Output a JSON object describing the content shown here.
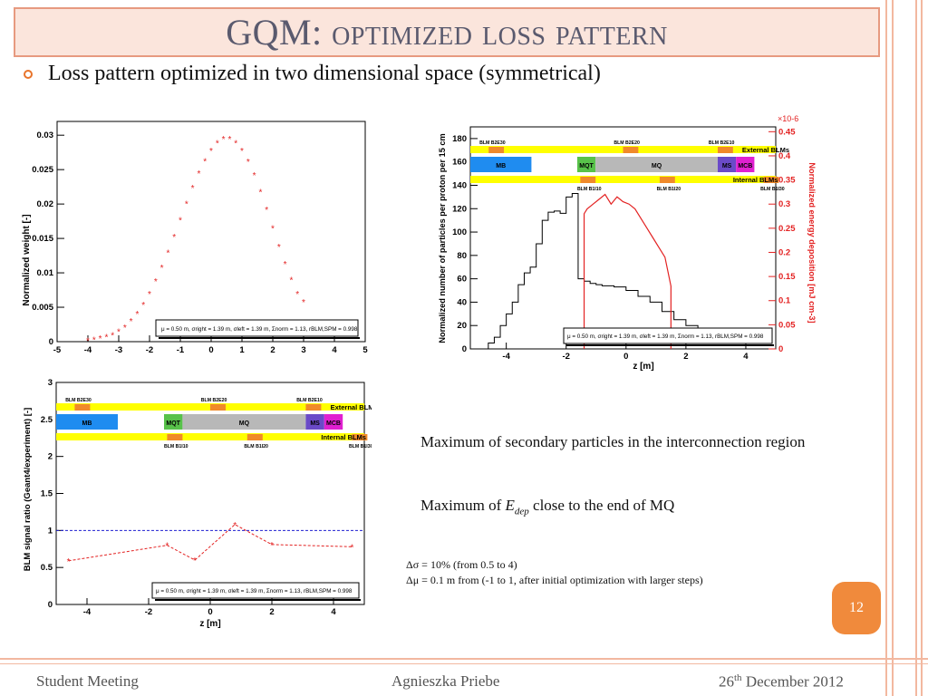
{
  "title": "GQM: optimized loss pattern",
  "bullet": "Loss pattern optimized in two dimensional space (symmetrical)",
  "legend_box": "μ = 0.50 m, σright = 1.39 m, σleft = 1.39 m, Σnorm = 1.13, rBLM,SPM = 0.998",
  "plots": {
    "weight": {
      "ylabel": "Normalized weight [-]",
      "yticks": [
        "0",
        "0.005",
        "0.01",
        "0.015",
        "0.02",
        "0.025",
        "0.03"
      ],
      "xticks": [
        "-5",
        "-4",
        "-3",
        "-2",
        "-1",
        "0",
        "1",
        "2",
        "3",
        "4",
        "5"
      ]
    },
    "particles": {
      "ylabel": "Normalized number of particles per proton per 15 cm",
      "ylabel_right": "Normalized energy deposition [mJ cm-3]",
      "yticks": [
        "0",
        "20",
        "40",
        "60",
        "80",
        "100",
        "120",
        "140",
        "160",
        "180"
      ],
      "yticks_right": [
        "0",
        "0.05",
        "0.1",
        "0.15",
        "0.2",
        "0.25",
        "0.3",
        "0.35",
        "0.4",
        "0.45"
      ],
      "exponent": "×10-6",
      "xticks": [
        "-4",
        "-2",
        "0",
        "2",
        "4"
      ],
      "xlabel": "z [m]"
    },
    "ratio": {
      "ylabel": "BLM signal ratio (Geant4/experiment) [-]",
      "yticks": [
        "0",
        "0.5",
        "1",
        "1.5",
        "2",
        "2.5",
        "3"
      ],
      "xticks": [
        "-4",
        "-2",
        "0",
        "2",
        "4"
      ],
      "xlabel": "z [m]"
    },
    "schematic": {
      "blm_top": [
        "BLM B2E30",
        "BLM B2E20",
        "BLM B2E10"
      ],
      "blm_bottom": [
        "BLM B1I10",
        "BLM B1I20",
        "BLM B1I30"
      ],
      "magnets": [
        "MB",
        "MQT",
        "MQ",
        "MS",
        "MCB"
      ],
      "external": "External BLMs",
      "internal": "Internal BLMs"
    }
  },
  "text": {
    "line1": "Maximum of secondary particles in the interconnection region",
    "line2_pre": "Maximum of ",
    "line2_e": "E",
    "line2_sub": "dep",
    "line2_post": " close to the end of MQ",
    "note1": "Δσ = 10% (from 0.5 to 4)",
    "note2": "Δμ = 0.1 m from (-1 to 1, after initial optimization with larger steps)"
  },
  "page_number": "12",
  "footer": {
    "left": "Student Meeting",
    "center": "Agnieszka Priebe",
    "right_pre": "26",
    "right_sup": "th",
    "right_post": " December 2012"
  },
  "chart_data": [
    {
      "type": "scatter",
      "ylabel": "Normalized weight [-]",
      "xlim": [
        -5,
        5
      ],
      "ylim": [
        0,
        0.032
      ],
      "x": [
        -4.0,
        -3.8,
        -3.6,
        -3.4,
        -3.2,
        -3.0,
        -2.8,
        -2.6,
        -2.4,
        -2.2,
        -2.0,
        -1.8,
        -1.6,
        -1.4,
        -1.2,
        -1.0,
        -0.8,
        -0.6,
        -0.4,
        -0.2,
        0.0,
        0.2,
        0.4,
        0.6,
        0.8,
        1.0,
        1.2,
        1.4,
        1.6,
        1.8,
        2.0,
        2.2,
        2.4,
        2.6,
        2.8,
        3.0
      ],
      "y": [
        0.0002,
        0.0003,
        0.0005,
        0.0007,
        0.001,
        0.0015,
        0.0021,
        0.003,
        0.0041,
        0.0054,
        0.007,
        0.0088,
        0.0108,
        0.013,
        0.0153,
        0.0177,
        0.0201,
        0.0224,
        0.0245,
        0.0263,
        0.0278,
        0.0289,
        0.0295,
        0.0295,
        0.0289,
        0.0278,
        0.0262,
        0.0242,
        0.0218,
        0.0192,
        0.0165,
        0.0138,
        0.0113,
        0.009,
        0.007,
        0.0058
      ]
    },
    {
      "type": "line",
      "xlabel": "z [m]",
      "xlim": [
        -5.2,
        5.0
      ],
      "series": [
        {
          "name": "particles",
          "axis": "left",
          "ylim": [
            0,
            190
          ],
          "x": [
            -5.0,
            -4.6,
            -4.4,
            -4.2,
            -4.0,
            -3.8,
            -3.6,
            -3.4,
            -3.2,
            -3.0,
            -2.8,
            -2.6,
            -2.4,
            -2.2,
            -2.0,
            -1.8,
            -1.6,
            -1.4,
            -1.2,
            -1.0,
            -0.8,
            -0.4,
            0.0,
            0.4,
            0.8,
            1.2,
            1.6,
            2.0,
            2.4
          ],
          "y": [
            0,
            5,
            10,
            20,
            30,
            40,
            55,
            65,
            70,
            90,
            110,
            117,
            118,
            116,
            130,
            133,
            60,
            58,
            56,
            55,
            54,
            53,
            50,
            45,
            40,
            32,
            25,
            20,
            17
          ]
        },
        {
          "name": "energy",
          "axis": "right",
          "ylim": [
            0,
            0.46
          ],
          "x": [
            -1.4,
            -1.4,
            -1.3,
            -1.1,
            -0.9,
            -0.7,
            -0.5,
            -0.3,
            -0.1,
            0.1,
            0.3,
            0.5,
            0.7,
            0.9,
            1.1,
            1.3,
            1.5,
            1.5
          ],
          "y": [
            0,
            0.28,
            0.29,
            0.3,
            0.31,
            0.32,
            0.3,
            0.315,
            0.305,
            0.3,
            0.29,
            0.27,
            0.25,
            0.23,
            0.21,
            0.19,
            0.13,
            0
          ]
        }
      ]
    },
    {
      "type": "scatter",
      "ylabel": "BLM signal ratio (Geant4/experiment) [-]",
      "xlabel": "z [m]",
      "xlim": [
        -5,
        5
      ],
      "ylim": [
        0,
        3
      ],
      "x": [
        -4.6,
        -1.4,
        -0.5,
        0.8,
        2.0,
        4.6
      ],
      "y": [
        0.59,
        0.8,
        0.6,
        1.08,
        0.81,
        0.78
      ],
      "reference": 1
    }
  ]
}
